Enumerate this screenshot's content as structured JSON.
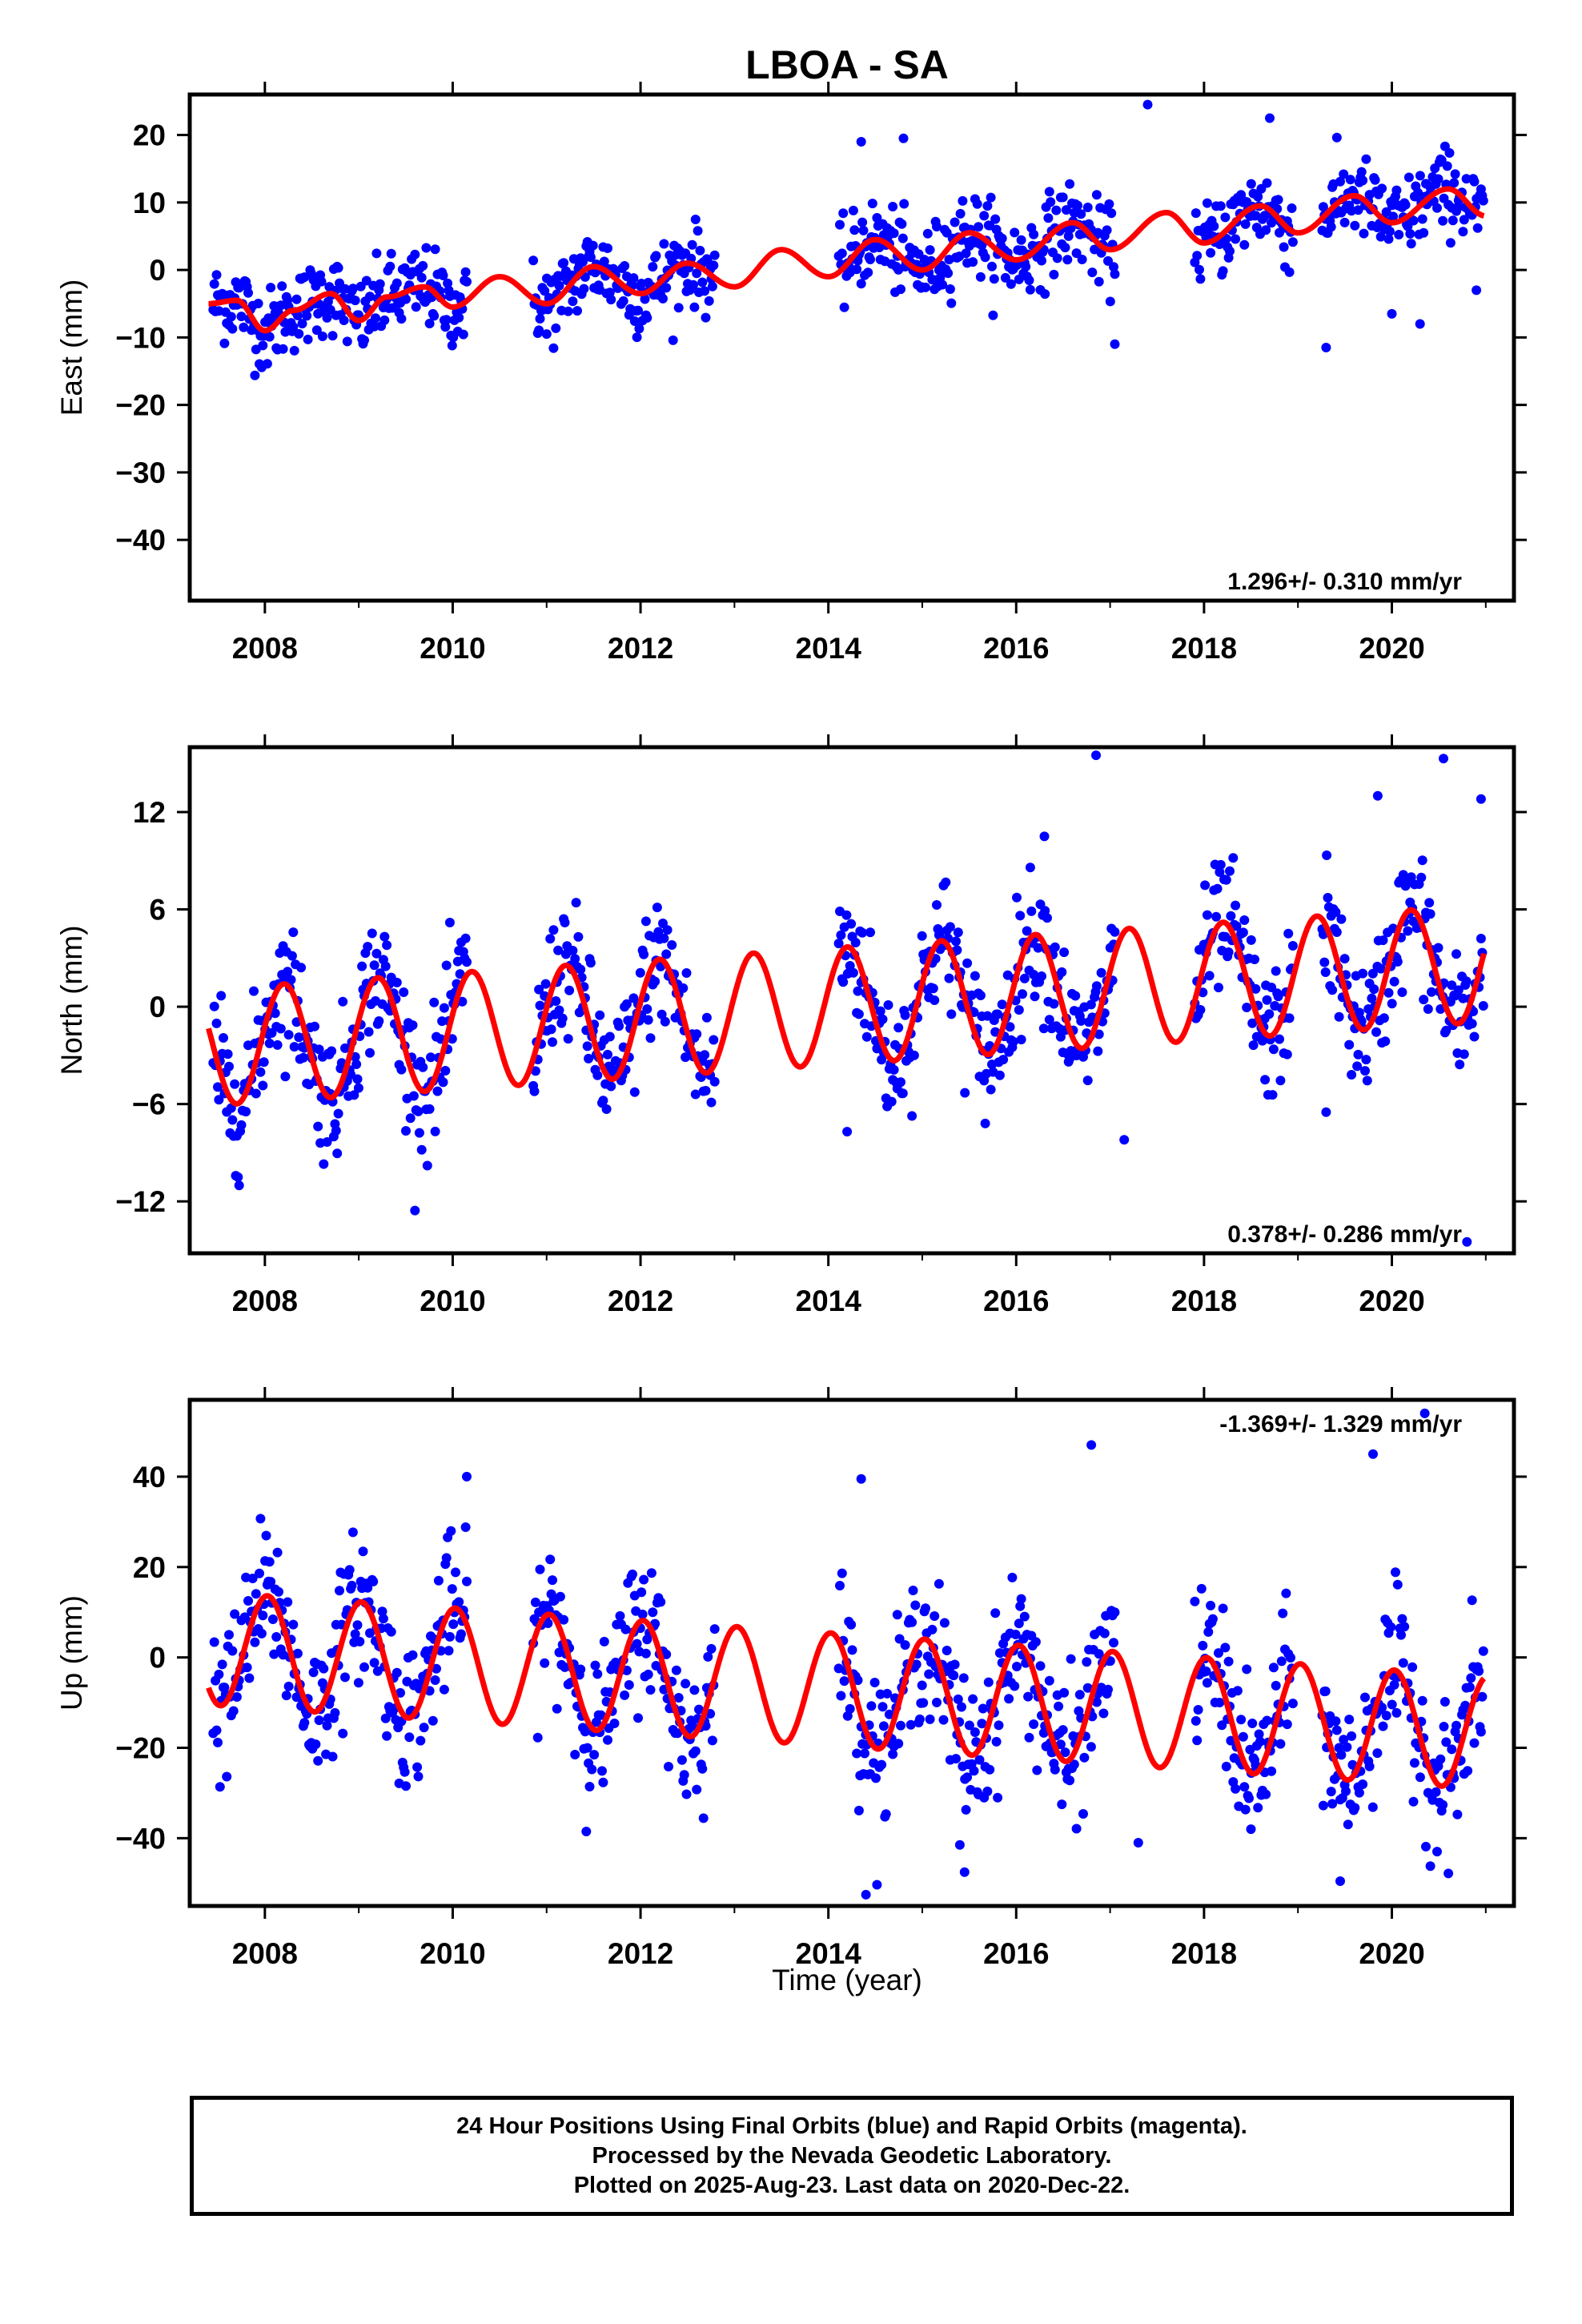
{
  "figure": {
    "title": "LBOA - SA",
    "xlabel": "Time (year)",
    "footer": [
      "24 Hour Positions Using Final Orbits (blue) and Rapid Orbits (magenta).",
      "Processed by the Nevada Geodetic Laboratory.",
      "Plotted on 2025-Aug-23. Last data on 2020-Dec-22."
    ],
    "colors": {
      "data": "#0000ff",
      "model": "#ff0000",
      "frame": "#000000"
    }
  },
  "chart_data": [
    {
      "type": "scatter",
      "ylabel": "East (mm)",
      "xlim": [
        2007.2,
        2021.3
      ],
      "ylim": [
        -49,
        26
      ],
      "x_ticks": [
        2008,
        2010,
        2012,
        2014,
        2016,
        2018,
        2020
      ],
      "y_ticks": [
        20,
        10,
        0,
        -10,
        -20,
        -30,
        -40
      ],
      "rate_annotation": "1.296+/- 0.310 mm/yr",
      "data_gaps": [
        [
          2010.15,
          2010.85
        ],
        [
          2012.8,
          2014.1
        ],
        [
          2017.05,
          2017.9
        ],
        [
          2018.95,
          2019.25
        ]
      ],
      "model": {
        "anchor_x": 2007.4,
        "anchor_y": -5.5,
        "rate": 1.3,
        "amplitude": 2.5,
        "phase": 4.7,
        "smoothing_knots": [
          [
            2007.4,
            -5.0
          ],
          [
            2007.7,
            -4.5
          ],
          [
            2008.0,
            -9.0
          ],
          [
            2008.3,
            -6.0
          ],
          [
            2008.7,
            -3.5
          ],
          [
            2009.0,
            -7.5
          ],
          [
            2009.3,
            -4.0
          ],
          [
            2009.7,
            -2.5
          ],
          [
            2010.0,
            -5.5
          ],
          [
            2010.5,
            -1.0
          ],
          [
            2011.0,
            -5.0
          ],
          [
            2011.5,
            0.5
          ],
          [
            2012.0,
            -3.5
          ],
          [
            2012.5,
            1.0
          ],
          [
            2013.0,
            -2.5
          ],
          [
            2013.5,
            3.0
          ],
          [
            2014.0,
            -1.0
          ],
          [
            2014.5,
            4.5
          ],
          [
            2015.0,
            0.0
          ],
          [
            2015.5,
            5.5
          ],
          [
            2016.0,
            1.5
          ],
          [
            2016.6,
            7.0
          ],
          [
            2017.0,
            3.0
          ],
          [
            2017.6,
            8.5
          ],
          [
            2018.0,
            4.0
          ],
          [
            2018.6,
            9.5
          ],
          [
            2019.0,
            5.5
          ],
          [
            2019.6,
            11.0
          ],
          [
            2020.0,
            7.0
          ],
          [
            2020.6,
            12.0
          ],
          [
            2021.0,
            8.0
          ]
        ]
      },
      "scatter_spread": 3.0,
      "outliers": [
        [
          2014.35,
          19.0
        ],
        [
          2014.8,
          19.5
        ],
        [
          2017.4,
          24.5
        ],
        [
          2018.7,
          22.5
        ],
        [
          2019.3,
          -11.5
        ],
        [
          2020.0,
          -6.5
        ],
        [
          2020.3,
          -8.0
        ],
        [
          2020.9,
          -3.0
        ],
        [
          2017.05,
          -11.0
        ],
        [
          2011.0,
          -9.5
        ]
      ]
    },
    {
      "type": "scatter",
      "ylabel": "North (mm)",
      "xlim": [
        2007.2,
        2021.3
      ],
      "ylim": [
        -15.2,
        16.0
      ],
      "x_ticks": [
        2008,
        2010,
        2012,
        2014,
        2016,
        2018,
        2020
      ],
      "y_ticks": [
        12,
        6,
        0,
        -6,
        -12
      ],
      "rate_annotation": "0.378+/- 0.286 mm/yr",
      "data_gaps": [
        [
          2010.15,
          2010.85
        ],
        [
          2012.8,
          2014.1
        ],
        [
          2017.05,
          2017.9
        ],
        [
          2018.95,
          2019.25
        ]
      ],
      "model": {
        "anchor_x": 2007.4,
        "anchor_y": -2.5,
        "rate": 0.38,
        "amplitude": 3.6,
        "phase": 0.3,
        "smoothing_knots": []
      },
      "scatter_spread": 2.0,
      "outliers": [
        [
          2016.85,
          15.5
        ],
        [
          2020.55,
          15.3
        ],
        [
          2020.95,
          12.8
        ],
        [
          2020.8,
          -14.5
        ],
        [
          2017.15,
          -8.2
        ],
        [
          2014.2,
          -7.7
        ],
        [
          2016.3,
          10.5
        ],
        [
          2019.3,
          -6.5
        ],
        [
          2019.85,
          13.0
        ],
        [
          2018.65,
          -4.5
        ]
      ]
    },
    {
      "type": "scatter",
      "ylabel": "Up (mm)",
      "xlim": [
        2007.2,
        2021.3
      ],
      "ylim": [
        -55,
        57
      ],
      "x_ticks": [
        2008,
        2010,
        2012,
        2014,
        2016,
        2018,
        2020
      ],
      "y_ticks": [
        40,
        20,
        0,
        -20,
        -40
      ],
      "rate_annotation": "-1.369+/- 1.329 mm/yr",
      "data_gaps": [
        [
          2010.15,
          2010.85
        ],
        [
          2012.8,
          2014.1
        ],
        [
          2017.05,
          2017.9
        ],
        [
          2018.95,
          2019.25
        ]
      ],
      "model": {
        "anchor_x": 2007.4,
        "anchor_y": 2.0,
        "rate": -1.37,
        "amplitude": 12.5,
        "phase": 1.4,
        "smoothing_knots": []
      },
      "scatter_spread": 8.0,
      "outliers": [
        [
          2014.4,
          -52.5
        ],
        [
          2015.4,
          -41.5
        ],
        [
          2015.45,
          -47.5
        ],
        [
          2016.8,
          47.0
        ],
        [
          2020.35,
          54.0
        ],
        [
          2019.45,
          -49.5
        ],
        [
          2017.3,
          -41.0
        ],
        [
          2014.35,
          39.5
        ],
        [
          2019.8,
          45.0
        ],
        [
          2010.15,
          40.0
        ],
        [
          2018.5,
          -38.0
        ]
      ]
    }
  ]
}
